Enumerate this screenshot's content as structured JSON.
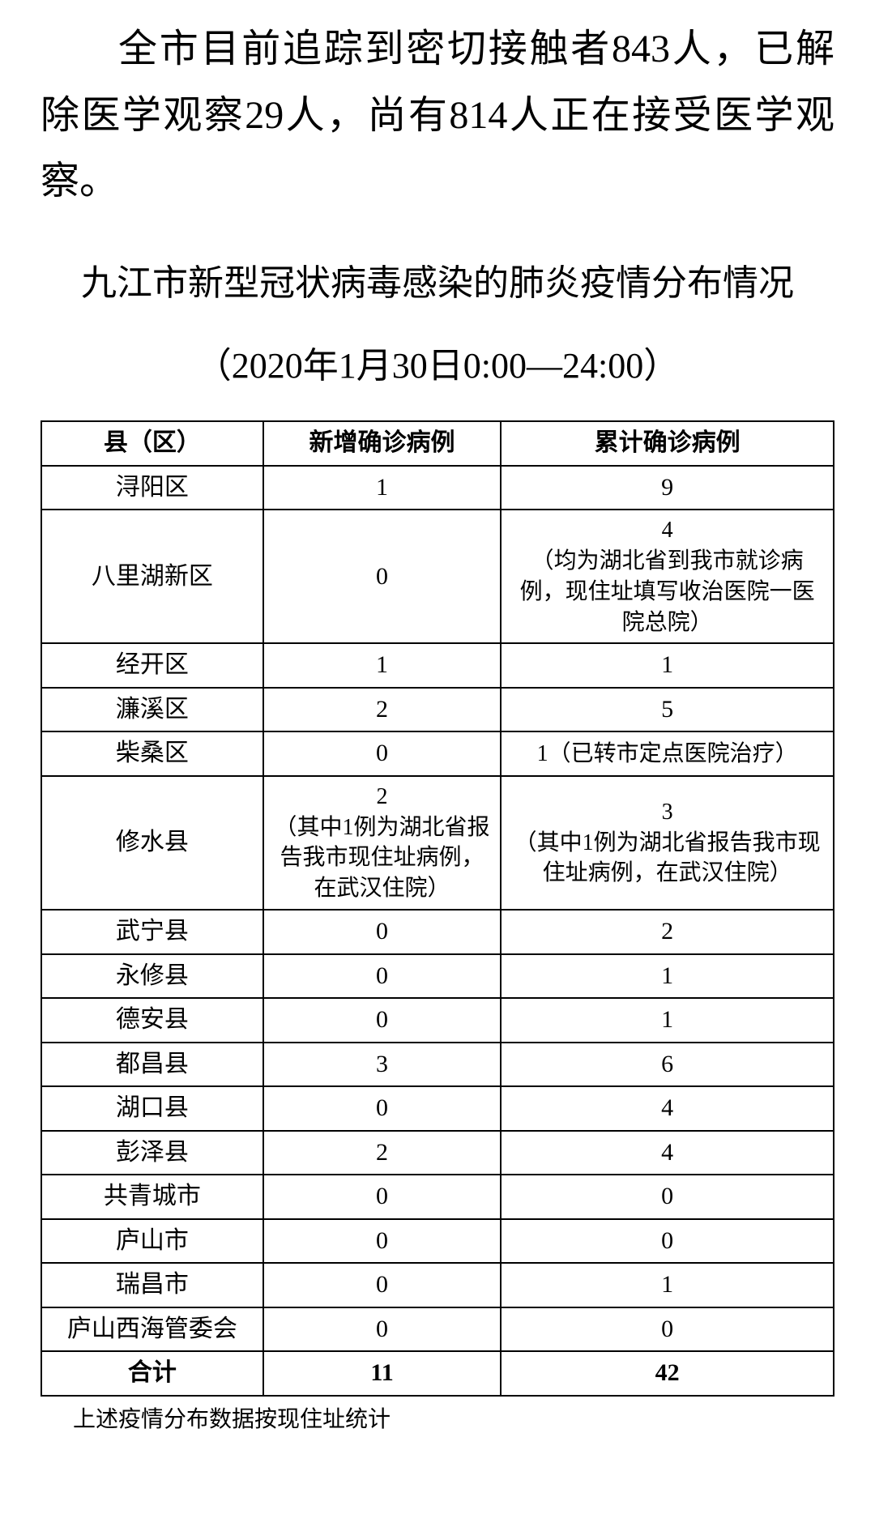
{
  "paragraph": "全市目前追踪到密切接触者843人，已解除医学观察29人，尚有814人正在接受医学观察。",
  "subtitle": "九江市新型冠状病毒感染的肺炎疫情分布情况",
  "date_range": "（2020年1月30日0:00—24:00）",
  "table": {
    "columns": [
      "县（区）",
      "新增确诊病例",
      "累计确诊病例"
    ],
    "rows": [
      {
        "district": "浔阳区",
        "new": "1",
        "total": "9"
      },
      {
        "district": "八里湖新区",
        "new": "0",
        "total": "4\n（均为湖北省到我市就诊病例，现住址填写收治医院一医院总院）"
      },
      {
        "district": "经开区",
        "new": "1",
        "total": "1"
      },
      {
        "district": "濂溪区",
        "new": "2",
        "total": "5"
      },
      {
        "district": "柴桑区",
        "new": "0",
        "total": "1（已转市定点医院治疗）"
      },
      {
        "district": "修水县",
        "new": "2\n（其中1例为湖北省报告我市现住址病例，在武汉住院）",
        "total": "3\n（其中1例为湖北省报告我市现住址病例，在武汉住院）"
      },
      {
        "district": "武宁县",
        "new": "0",
        "total": "2"
      },
      {
        "district": "永修县",
        "new": "0",
        "total": "1"
      },
      {
        "district": "德安县",
        "new": "0",
        "total": "1"
      },
      {
        "district": "都昌县",
        "new": "3",
        "total": "6"
      },
      {
        "district": "湖口县",
        "new": "0",
        "total": "4"
      },
      {
        "district": "彭泽县",
        "new": "2",
        "total": "4"
      },
      {
        "district": "共青城市",
        "new": "0",
        "total": "0"
      },
      {
        "district": "庐山市",
        "new": "0",
        "total": "0"
      },
      {
        "district": "瑞昌市",
        "new": "0",
        "total": "1"
      },
      {
        "district": "庐山西海管委会",
        "new": "0",
        "total": "0"
      }
    ],
    "total": {
      "label": "合计",
      "new": "11",
      "total": "42"
    }
  },
  "footnote": "上述疫情分布数据按现住址统计"
}
